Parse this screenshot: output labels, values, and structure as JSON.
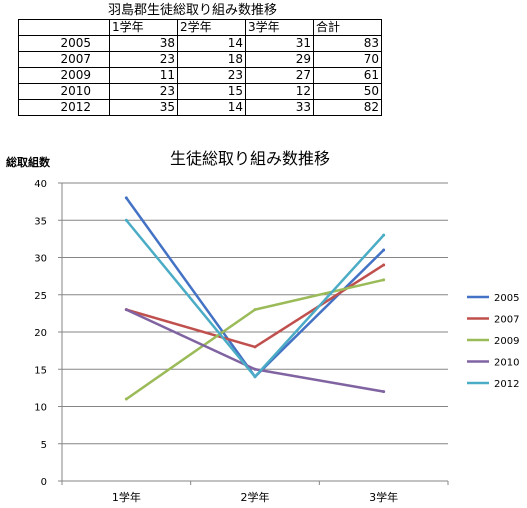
{
  "table": {
    "title": "羽島郡生徒総取り組み数推移",
    "headers": [
      "",
      "1学年",
      "2学年",
      "3学年",
      "合計"
    ],
    "rows": [
      {
        "year": "2005",
        "values": [
          38,
          14,
          31,
          83
        ]
      },
      {
        "year": "2007",
        "values": [
          23,
          18,
          29,
          70
        ]
      },
      {
        "year": "2009",
        "values": [
          11,
          23,
          27,
          61
        ]
      },
      {
        "year": "2010",
        "values": [
          23,
          15,
          12,
          50
        ]
      },
      {
        "year": "2012",
        "values": [
          35,
          14,
          33,
          82
        ]
      }
    ]
  },
  "chart_data": {
    "type": "line",
    "title": "生徒総取り組み数推移",
    "ylabel": "総取組数",
    "xlabel": "",
    "categories": [
      "1学年",
      "2学年",
      "3学年"
    ],
    "ylim": [
      0,
      40
    ],
    "yticks": [
      0,
      5,
      10,
      15,
      20,
      25,
      30,
      35,
      40
    ],
    "grid": true,
    "legend": "right",
    "series": [
      {
        "name": "2005",
        "color": "#4472C4",
        "values": [
          38,
          14,
          31
        ]
      },
      {
        "name": "2007",
        "color": "#C0504D",
        "values": [
          23,
          18,
          29
        ]
      },
      {
        "name": "2009",
        "color": "#9BBB59",
        "values": [
          11,
          23,
          27
        ]
      },
      {
        "name": "2010",
        "color": "#8064A2",
        "values": [
          23,
          15,
          12
        ]
      },
      {
        "name": "2012",
        "color": "#4BACC6",
        "values": [
          35,
          14,
          33
        ]
      }
    ]
  }
}
